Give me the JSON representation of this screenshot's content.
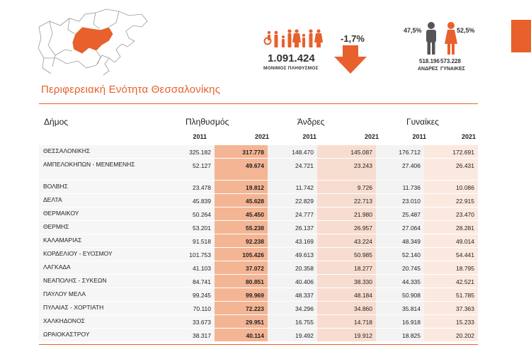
{
  "header": {
    "region_title": "Περιφερειακή Ενότητα Θεσσαλονίκης",
    "population": "1.091.424",
    "population_label": "ΜΟΝΙΜΟΣ ΠΛΗΘΥΣΜΟΣ",
    "change": "-1,7%",
    "men_percent": "47,5%",
    "women_percent": "52,5%",
    "men_count": "518.196",
    "women_count": "573.228",
    "men_label": "ΑΝΔΡΕΣ",
    "women_label": "ΓΥΝΑΙΚΕΣ",
    "accent_color": "#e8602c"
  },
  "table": {
    "col_municipality": "Δήμος",
    "col_population": "Πληθυσμός",
    "col_men": "Άνδρες",
    "col_women": "Γυναίκες",
    "year_a": "2011",
    "year_b": "2021",
    "rows": [
      {
        "name": "ΘΕΣΣΑΛΟΝΙΚΗΣ",
        "p11": "325.182",
        "p21": "317.778",
        "m11": "148.470",
        "m21": "145.087",
        "w11": "176.712",
        "w21": "172.691"
      },
      {
        "name": "ΑΜΠΕΛΟΚΗΠΩΝ - ΜΕΝΕΜΕΝΗΣ",
        "p11": "52.127",
        "p21": "49.674",
        "m11": "24.721",
        "m21": "23.243",
        "w11": "27.406",
        "w21": "26.431"
      },
      {
        "name": "ΒΟΛΒΗΣ",
        "p11": "23.478",
        "p21": "19.812",
        "m11": "11.742",
        "m21": "9.726",
        "w11": "11.736",
        "w21": "10.086"
      },
      {
        "name": "ΔΕΛΤΑ",
        "p11": "45.839",
        "p21": "45.628",
        "m11": "22.829",
        "m21": "22.713",
        "w11": "23.010",
        "w21": "22.915"
      },
      {
        "name": "ΘΕΡΜΑΙΚΟΥ",
        "p11": "50.264",
        "p21": "45.450",
        "m11": "24.777",
        "m21": "21.980",
        "w11": "25.487",
        "w21": "23.470"
      },
      {
        "name": "ΘΕΡΜΗΣ",
        "p11": "53.201",
        "p21": "55.238",
        "m11": "26.137",
        "m21": "26.957",
        "w11": "27.064",
        "w21": "28.281"
      },
      {
        "name": "ΚΑΛΑΜΑΡΙΑΣ",
        "p11": "91.518",
        "p21": "92.238",
        "m11": "43.169",
        "m21": "43.224",
        "w11": "48.349",
        "w21": "49.014"
      },
      {
        "name": "ΚΟΡΔΕΛΙΟΥ - ΕΥΟΣΜΟΥ",
        "p11": "101.753",
        "p21": "105.426",
        "m11": "49.613",
        "m21": "50.985",
        "w11": "52.140",
        "w21": "54.441"
      },
      {
        "name": "ΛΑΓΚΑΔΑ",
        "p11": "41.103",
        "p21": "37.072",
        "m11": "20.358",
        "m21": "18.277",
        "w11": "20.745",
        "w21": "18.795"
      },
      {
        "name": "ΝΕΑΠΟΛΗΣ - ΣΥΚΕΩΝ",
        "p11": "84.741",
        "p21": "80.851",
        "m11": "40.406",
        "m21": "38.330",
        "w11": "44.335",
        "w21": "42.521"
      },
      {
        "name": "ΠΑΥΛΟΥ ΜΕΛΑ",
        "p11": "99.245",
        "p21": "99.969",
        "m11": "48.337",
        "m21": "48.184",
        "w11": "50.908",
        "w21": "51.785"
      },
      {
        "name": "ΠΥΛΑΙΑΣ - ΧΟΡΤΙΑΤΗ",
        "p11": "70.110",
        "p21": "72.223",
        "m11": "34.296",
        "m21": "34.860",
        "w11": "35.814",
        "w21": "37.363"
      },
      {
        "name": "ΧΑΛΚΗΔΟΝΟΣ",
        "p11": "33.673",
        "p21": "29.951",
        "m11": "16.755",
        "m21": "14.718",
        "w11": "16.918",
        "w21": "15.233"
      },
      {
        "name": "ΩΡΑΙΟΚΑΣΤΡΟΥ",
        "p11": "38.317",
        "p21": "40.114",
        "m11": "19.492",
        "m21": "19.912",
        "w11": "18.825",
        "w21": "20.202"
      }
    ]
  }
}
